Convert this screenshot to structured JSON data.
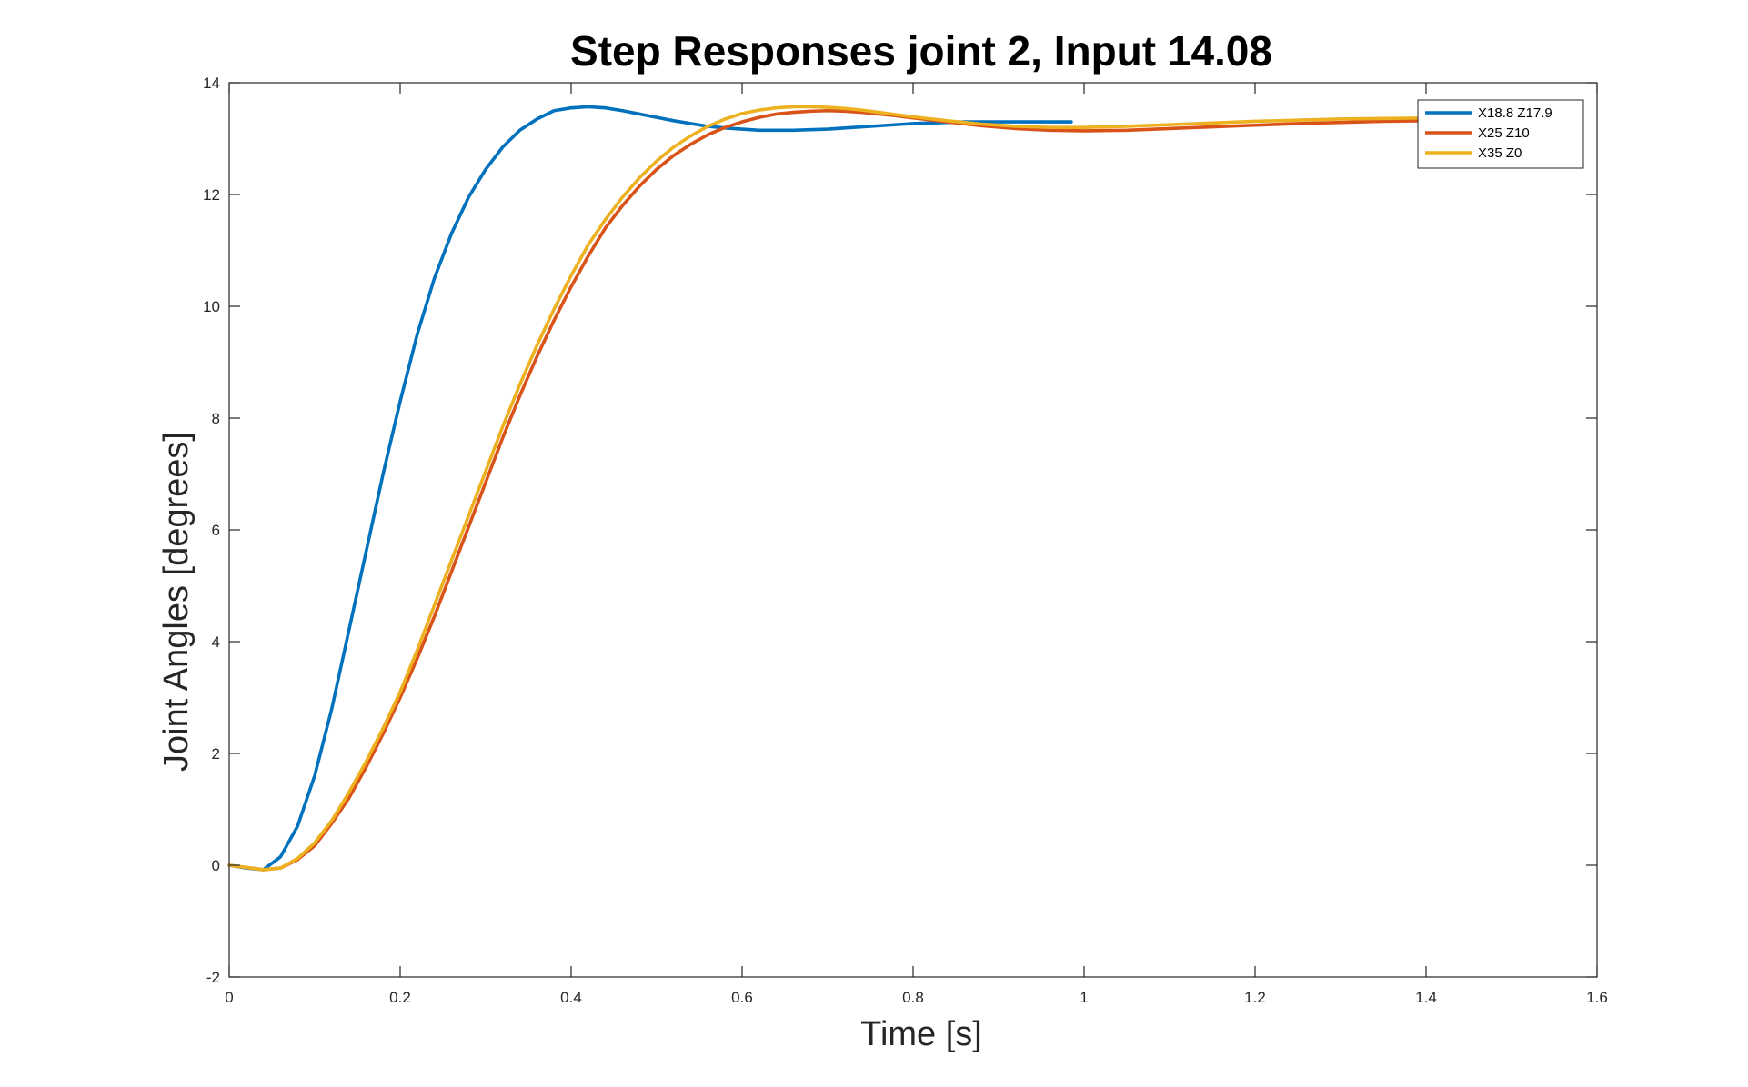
{
  "chart_data": {
    "type": "line",
    "title": "Step Responses joint 2, Input 14.08",
    "xlabel": "Time [s]",
    "ylabel": "Joint Angles [degrees]",
    "xlim": [
      0,
      1.6
    ],
    "ylim": [
      -2,
      14
    ],
    "xticks": [
      0,
      0.2,
      0.4,
      0.6,
      0.8,
      1,
      1.2,
      1.4,
      1.6
    ],
    "xtick_labels": [
      "0",
      "0.2",
      "0.4",
      "0.6",
      "0.8",
      "1",
      "1.2",
      "1.4",
      "1.6"
    ],
    "yticks": [
      -2,
      0,
      2,
      4,
      6,
      8,
      10,
      12,
      14
    ],
    "ytick_labels": [
      "-2",
      "0",
      "2",
      "4",
      "6",
      "8",
      "10",
      "12",
      "14"
    ],
    "grid": false,
    "legend_position": "top-right",
    "series": [
      {
        "name": "X18.8 Z17.9",
        "color": "#0072BD",
        "x": [
          0,
          0.02,
          0.04,
          0.06,
          0.08,
          0.1,
          0.12,
          0.14,
          0.16,
          0.18,
          0.2,
          0.22,
          0.24,
          0.26,
          0.28,
          0.3,
          0.32,
          0.34,
          0.36,
          0.38,
          0.4,
          0.42,
          0.44,
          0.46,
          0.48,
          0.5,
          0.52,
          0.54,
          0.56,
          0.58,
          0.6,
          0.62,
          0.64,
          0.66,
          0.68,
          0.7,
          0.72,
          0.74,
          0.76,
          0.78,
          0.8,
          0.82,
          0.84,
          0.86,
          0.88,
          0.9,
          0.92,
          0.94,
          0.96,
          0.985
        ],
        "y": [
          0,
          -0.05,
          -0.08,
          0.15,
          0.7,
          1.6,
          2.8,
          4.2,
          5.6,
          7.0,
          8.3,
          9.5,
          10.5,
          11.3,
          11.95,
          12.45,
          12.85,
          13.15,
          13.35,
          13.5,
          13.55,
          13.57,
          13.55,
          13.5,
          13.44,
          13.38,
          13.32,
          13.27,
          13.22,
          13.19,
          13.17,
          13.15,
          13.15,
          13.15,
          13.16,
          13.17,
          13.19,
          13.21,
          13.23,
          13.25,
          13.27,
          13.28,
          13.29,
          13.3,
          13.3,
          13.3,
          13.3,
          13.3,
          13.3,
          13.3
        ]
      },
      {
        "name": "X25 Z10",
        "color": "#D95319",
        "x": [
          0,
          0.02,
          0.04,
          0.06,
          0.08,
          0.1,
          0.12,
          0.14,
          0.16,
          0.18,
          0.2,
          0.22,
          0.24,
          0.26,
          0.28,
          0.3,
          0.32,
          0.34,
          0.36,
          0.38,
          0.4,
          0.42,
          0.44,
          0.46,
          0.48,
          0.5,
          0.52,
          0.54,
          0.56,
          0.58,
          0.6,
          0.62,
          0.64,
          0.66,
          0.68,
          0.7,
          0.72,
          0.74,
          0.76,
          0.78,
          0.8,
          0.84,
          0.88,
          0.92,
          0.96,
          1.0,
          1.05,
          1.1,
          1.15,
          1.2,
          1.25,
          1.3,
          1.35,
          1.4,
          1.45,
          1.5
        ],
        "y": [
          0,
          -0.04,
          -0.08,
          -0.05,
          0.1,
          0.35,
          0.75,
          1.2,
          1.75,
          2.35,
          3.0,
          3.7,
          4.45,
          5.25,
          6.05,
          6.85,
          7.65,
          8.4,
          9.1,
          9.75,
          10.35,
          10.9,
          11.4,
          11.8,
          12.15,
          12.45,
          12.7,
          12.9,
          13.07,
          13.2,
          13.3,
          13.38,
          13.44,
          13.47,
          13.49,
          13.5,
          13.49,
          13.47,
          13.44,
          13.41,
          13.37,
          13.3,
          13.23,
          13.18,
          13.15,
          13.14,
          13.15,
          13.18,
          13.21,
          13.24,
          13.27,
          13.29,
          13.31,
          13.32,
          13.33,
          13.33
        ]
      },
      {
        "name": "X35 Z0",
        "color": "#EDB120",
        "x": [
          0,
          0.02,
          0.04,
          0.06,
          0.08,
          0.1,
          0.12,
          0.14,
          0.16,
          0.18,
          0.2,
          0.22,
          0.24,
          0.26,
          0.28,
          0.3,
          0.32,
          0.34,
          0.36,
          0.38,
          0.4,
          0.42,
          0.44,
          0.46,
          0.48,
          0.5,
          0.52,
          0.54,
          0.56,
          0.58,
          0.6,
          0.62,
          0.64,
          0.66,
          0.68,
          0.7,
          0.72,
          0.74,
          0.76,
          0.78,
          0.8,
          0.84,
          0.88,
          0.92,
          0.96,
          1.0,
          1.05,
          1.1,
          1.15,
          1.2,
          1.25,
          1.3,
          1.35,
          1.4,
          1.45,
          1.5
        ],
        "y": [
          0,
          -0.04,
          -0.08,
          -0.05,
          0.12,
          0.4,
          0.8,
          1.3,
          1.85,
          2.45,
          3.1,
          3.85,
          4.65,
          5.45,
          6.25,
          7.05,
          7.85,
          8.6,
          9.3,
          9.95,
          10.55,
          11.1,
          11.55,
          11.95,
          12.3,
          12.6,
          12.85,
          13.05,
          13.22,
          13.35,
          13.45,
          13.51,
          13.55,
          13.57,
          13.57,
          13.56,
          13.54,
          13.51,
          13.47,
          13.43,
          13.39,
          13.32,
          13.26,
          13.22,
          13.2,
          13.2,
          13.22,
          13.25,
          13.28,
          13.31,
          13.33,
          13.35,
          13.36,
          13.37,
          13.37,
          13.37
        ]
      }
    ]
  }
}
